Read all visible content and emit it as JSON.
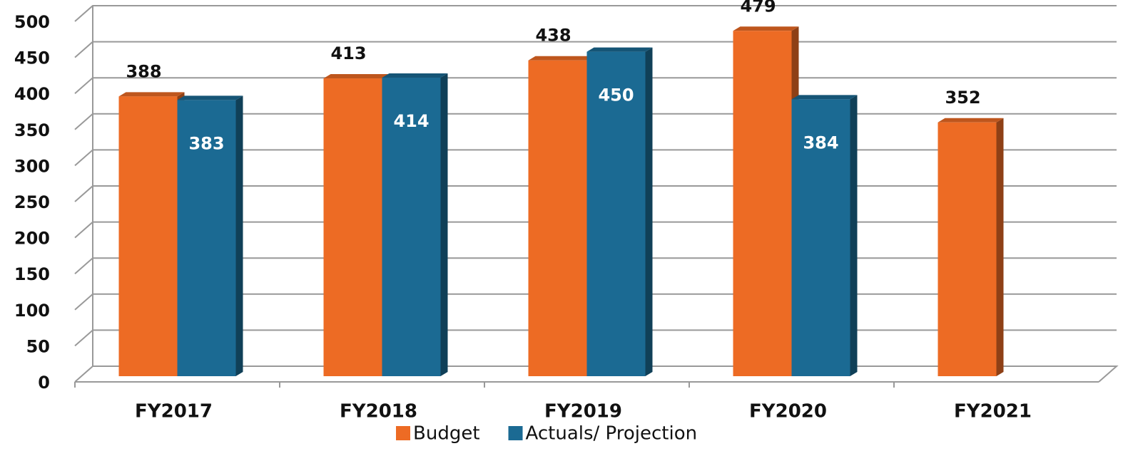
{
  "chart_data": {
    "type": "bar3d",
    "categories": [
      "FY2017",
      "FY2018",
      "FY2019",
      "FY2020",
      "FY2021"
    ],
    "series": [
      {
        "name": "Budget",
        "color": "#ED6B24",
        "values": [
          388,
          413,
          438,
          479,
          352
        ]
      },
      {
        "name": "Actuals/ Projection",
        "color": "#1B6A93",
        "values": [
          383,
          414,
          450,
          384,
          null
        ]
      }
    ],
    "ylim": [
      0,
      500
    ],
    "yticks": [
      0,
      50,
      100,
      150,
      200,
      250,
      300,
      350,
      400,
      450,
      500
    ],
    "grid": true,
    "legend": "bottom"
  }
}
